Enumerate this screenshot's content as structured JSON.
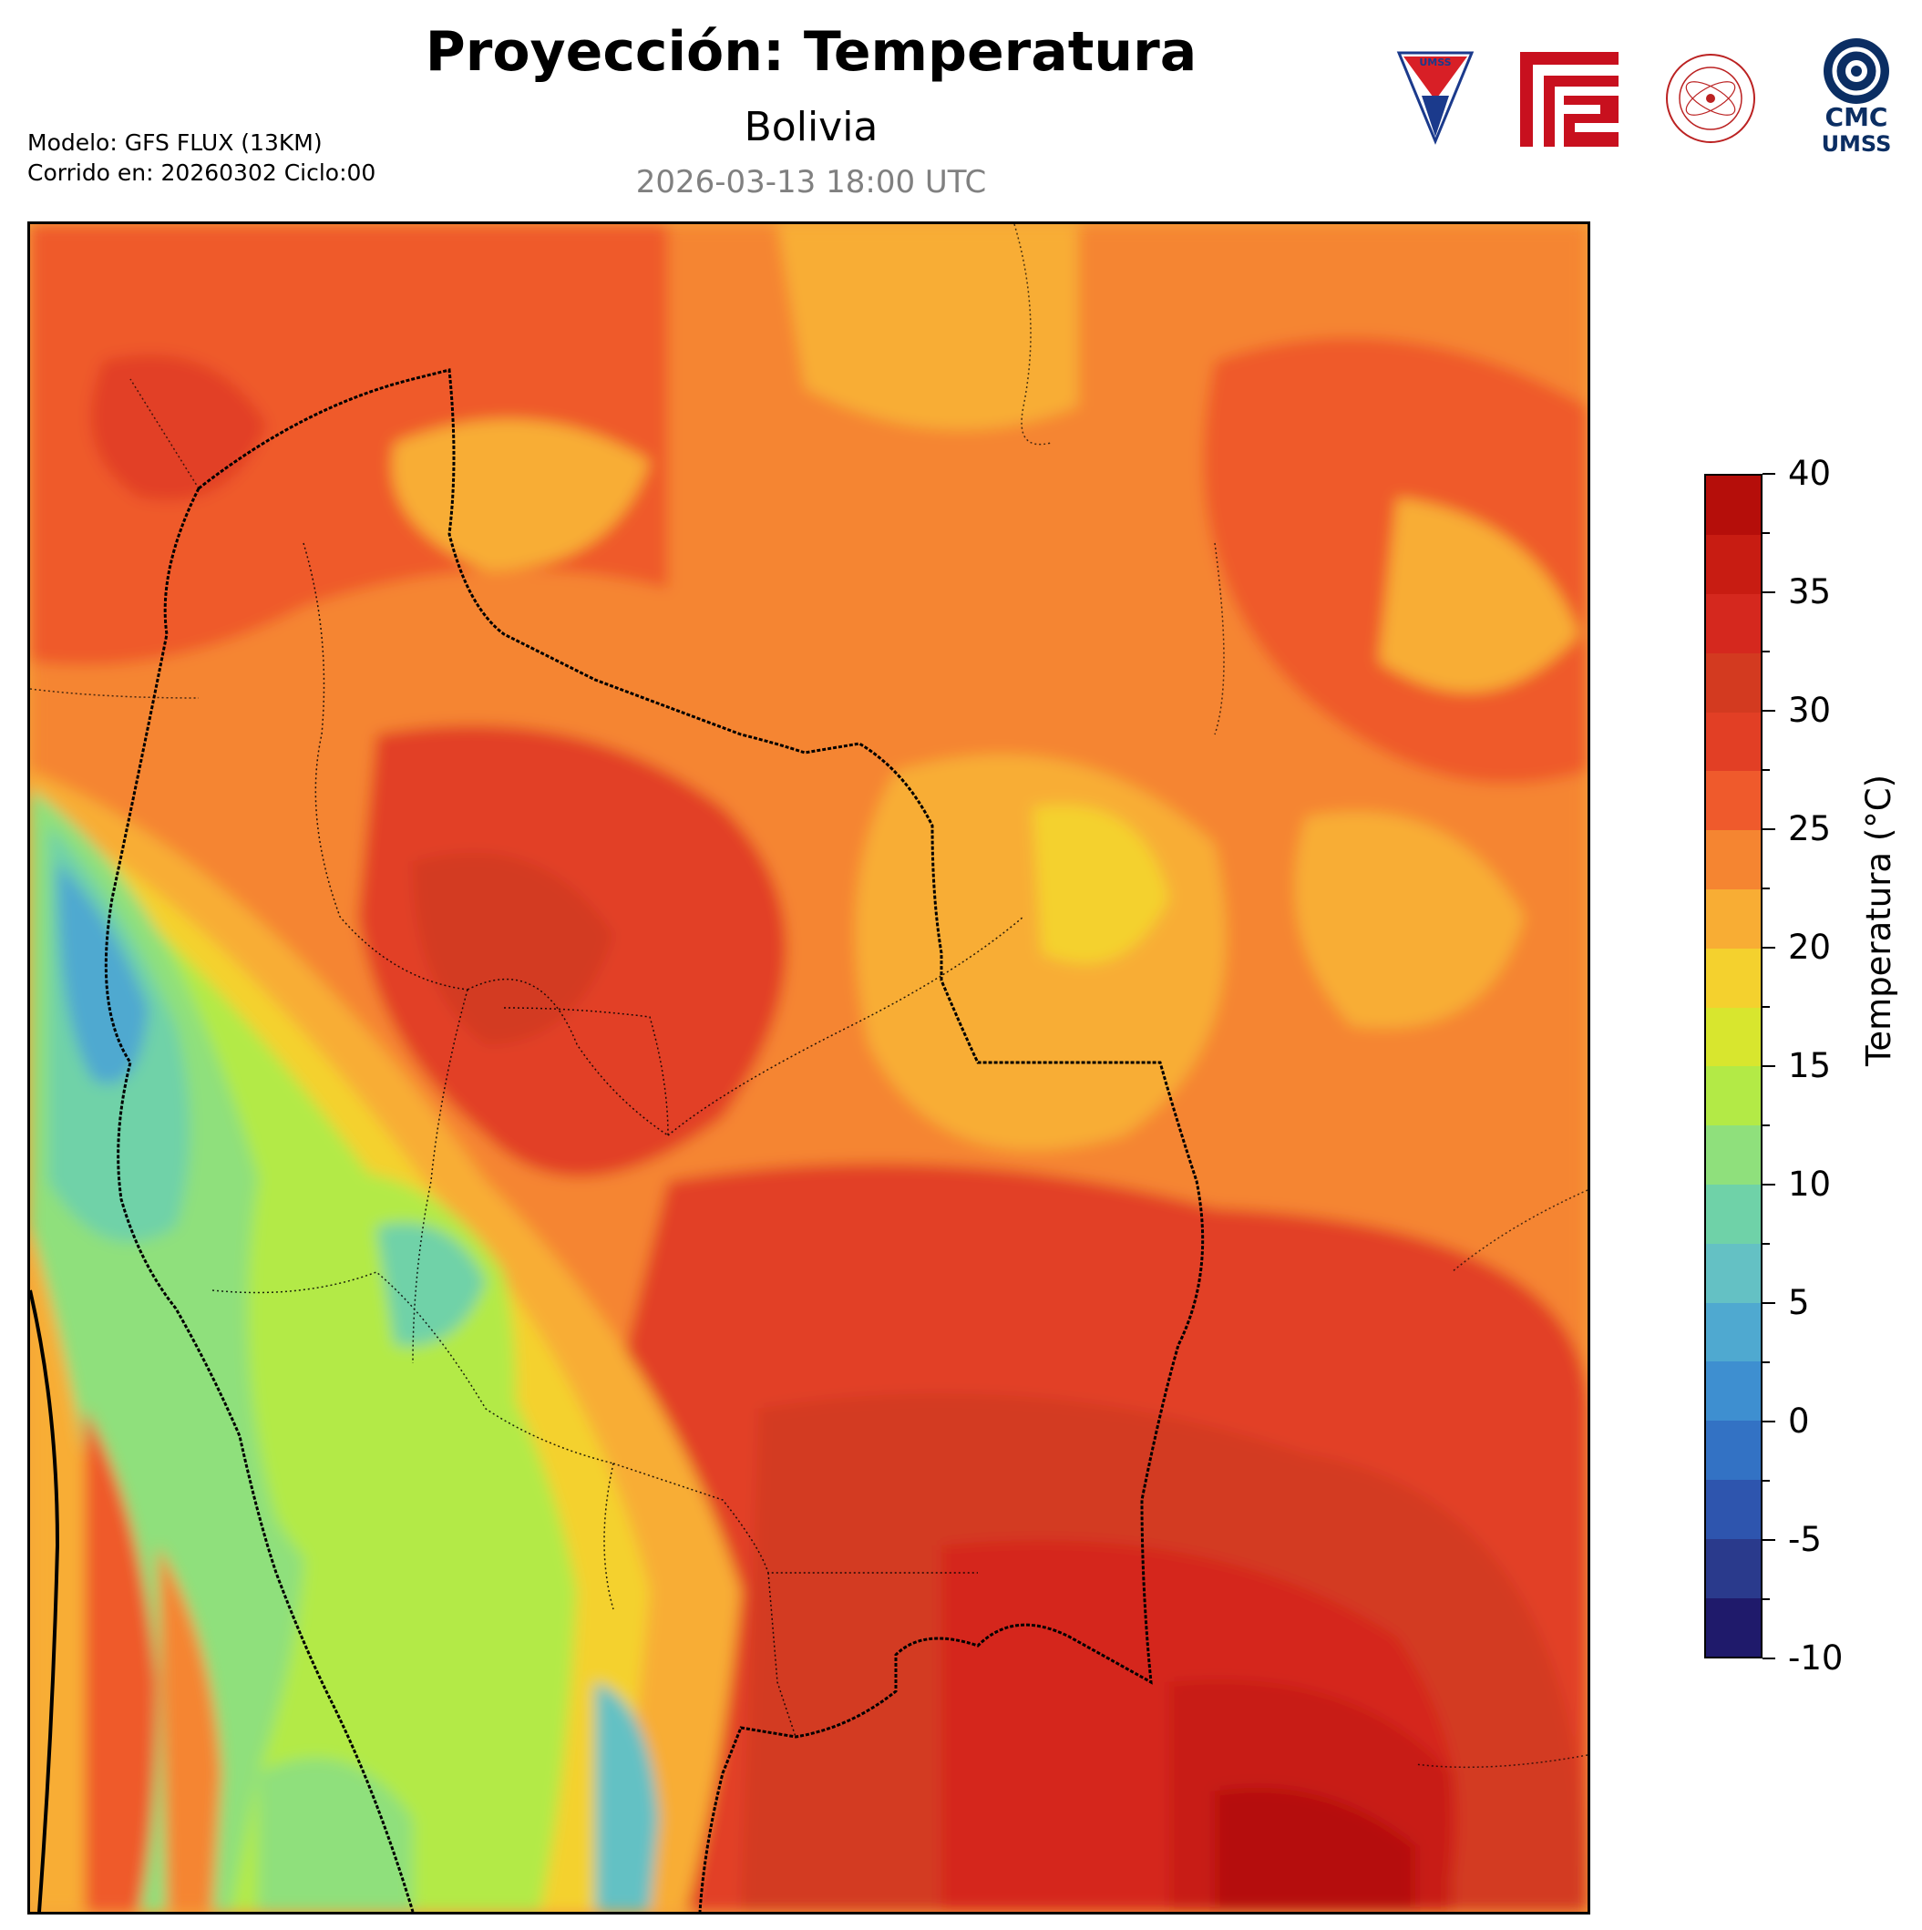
{
  "header": {
    "title": "Proyección: Temperatura",
    "subtitle": "Bolivia",
    "datetime": "2026-03-13 18:00 UTC",
    "model_line": "Modelo: GFS FLUX (13KM)",
    "run_line": "Corrido en: 20260302 Ciclo:00"
  },
  "logos": [
    {
      "name": "umss-shield-logo",
      "text": "UMSS"
    },
    {
      "name": "faculty-red-logo",
      "text": ""
    },
    {
      "name": "physics-department-seal",
      "text": "DEPARTAMENTO DE FISICA"
    },
    {
      "name": "cmc-umss-logo",
      "text_line1": "CMC",
      "text_line2": "UMSS"
    }
  ],
  "colorbar": {
    "label": "Temperatura (°C)",
    "ticks": [
      "40",
      "35",
      "30",
      "25",
      "20",
      "15",
      "10",
      "5",
      "0",
      "-5",
      "-10"
    ],
    "min": -10,
    "max": 40,
    "step": 2.5,
    "colors": [
      "#1f1a6b",
      "#2a3a8c",
      "#2e55ae",
      "#3372c4",
      "#3e8fd0",
      "#4fa9d0",
      "#64c1c4",
      "#6fd2a8",
      "#8fe07c",
      "#b3ea46",
      "#d8e62e",
      "#f4d12e",
      "#f8ad34",
      "#f58531",
      "#ef5a2c",
      "#e23f25",
      "#d33a20",
      "#d5281e",
      "#c81c12",
      "#b50e0a"
    ]
  },
  "map": {
    "region": "Bolivia",
    "variable": "Temperatura",
    "units": "°C"
  }
}
